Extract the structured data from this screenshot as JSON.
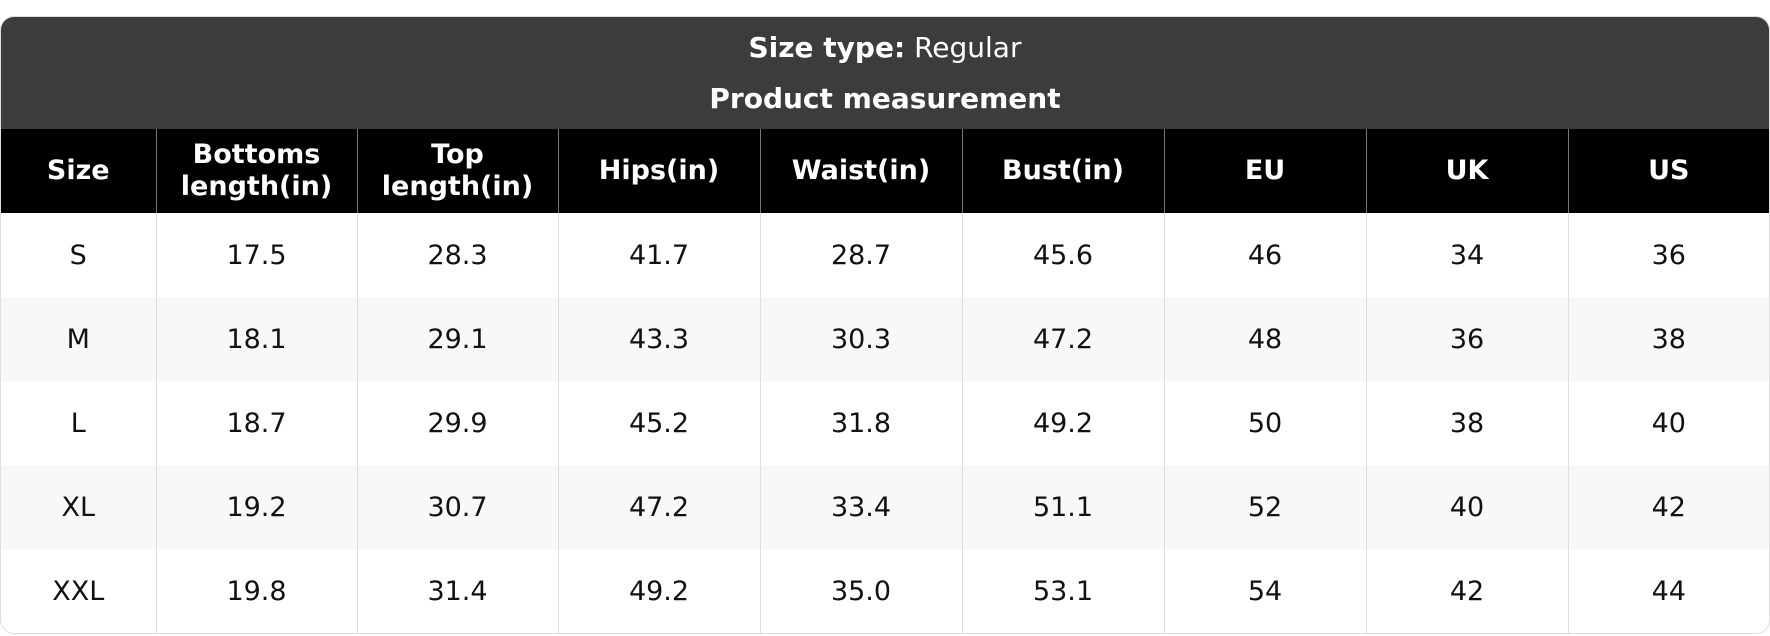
{
  "header": {
    "size_type_label": "Size type:",
    "size_type": "Regular",
    "subtitle": "Product measurement"
  },
  "table": {
    "columns": [
      "Size",
      "Bottoms length(in)",
      "Top length(in)",
      "Hips(in)",
      "Waist(in)",
      "Bust(in)",
      "EU",
      "UK",
      "US"
    ],
    "rows": [
      [
        "S",
        "17.5",
        "28.3",
        "41.7",
        "28.7",
        "45.6",
        "46",
        "34",
        "36"
      ],
      [
        "M",
        "18.1",
        "29.1",
        "43.3",
        "30.3",
        "47.2",
        "48",
        "36",
        "38"
      ],
      [
        "L",
        "18.7",
        "29.9",
        "45.2",
        "31.8",
        "49.2",
        "50",
        "38",
        "40"
      ],
      [
        "XL",
        "19.2",
        "30.7",
        "47.2",
        "33.4",
        "51.1",
        "52",
        "40",
        "42"
      ],
      [
        "XXL",
        "19.8",
        "31.4",
        "49.2",
        "35.0",
        "53.1",
        "54",
        "42",
        "44"
      ]
    ]
  }
}
